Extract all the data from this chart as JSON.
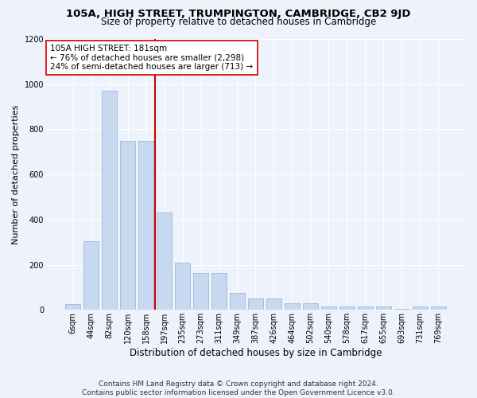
{
  "title": "105A, HIGH STREET, TRUMPINGTON, CAMBRIDGE, CB2 9JD",
  "subtitle": "Size of property relative to detached houses in Cambridge",
  "xlabel": "Distribution of detached houses by size in Cambridge",
  "ylabel": "Number of detached properties",
  "categories": [
    "6sqm",
    "44sqm",
    "82sqm",
    "120sqm",
    "158sqm",
    "197sqm",
    "235sqm",
    "273sqm",
    "311sqm",
    "349sqm",
    "387sqm",
    "426sqm",
    "464sqm",
    "502sqm",
    "540sqm",
    "578sqm",
    "617sqm",
    "655sqm",
    "693sqm",
    "731sqm",
    "769sqm"
  ],
  "values": [
    25,
    305,
    970,
    750,
    750,
    430,
    210,
    165,
    165,
    75,
    50,
    50,
    30,
    30,
    15,
    15,
    15,
    15,
    5,
    15,
    15
  ],
  "bar_color": "#c6d9f0",
  "bar_edge_color": "#a0b8d8",
  "vline_color": "#cc0000",
  "vline_pos": 4.5,
  "annotation_text": "105A HIGH STREET: 181sqm\n← 76% of detached houses are smaller (2,298)\n24% of semi-detached houses are larger (713) →",
  "annotation_box_facecolor": "#ffffff",
  "annotation_box_edgecolor": "#cc0000",
  "ylim": [
    0,
    1200
  ],
  "yticks": [
    0,
    200,
    400,
    600,
    800,
    1000,
    1200
  ],
  "footer": "Contains HM Land Registry data © Crown copyright and database right 2024.\nContains public sector information licensed under the Open Government Licence v3.0.",
  "bg_color": "#eef2fb",
  "grid_color": "#ffffff",
  "title_fontsize": 9.5,
  "subtitle_fontsize": 8.5,
  "xlabel_fontsize": 8.5,
  "ylabel_fontsize": 8,
  "tick_fontsize": 7,
  "annotation_fontsize": 7.5,
  "footer_fontsize": 6.5
}
